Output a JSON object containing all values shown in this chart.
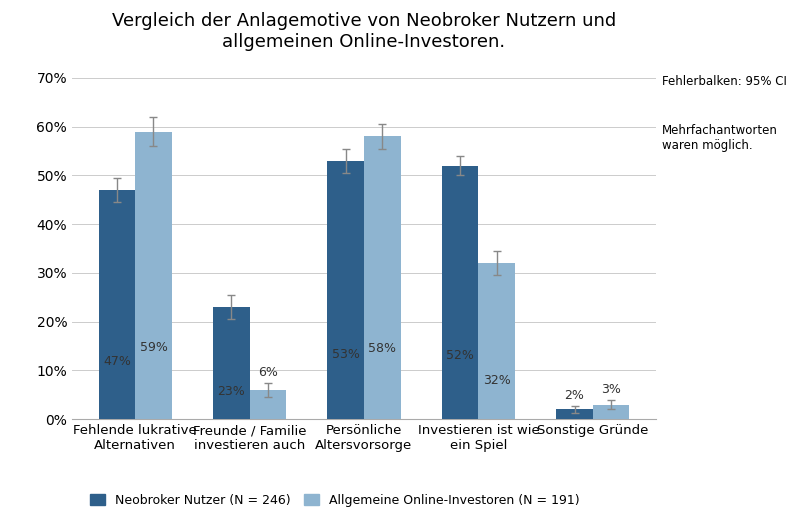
{
  "title": "Vergleich der Anlagemotive von Neobroker Nutzern und\nallgemeinen Online-Investoren.",
  "categories": [
    "Fehlende lukrative\nAlternativen",
    "Freunde / Familie\ninvestieren auch",
    "Persönliche\nAltersvorsorge",
    "Investieren ist wie\nein Spiel",
    "Sonstige Gründe"
  ],
  "neobroker_values": [
    0.47,
    0.23,
    0.53,
    0.52,
    0.02
  ],
  "online_values": [
    0.59,
    0.06,
    0.58,
    0.32,
    0.03
  ],
  "neobroker_errors": [
    0.025,
    0.025,
    0.025,
    0.02,
    0.008
  ],
  "online_errors": [
    0.03,
    0.015,
    0.025,
    0.025,
    0.01
  ],
  "neobroker_color": "#2E5F8A",
  "online_color": "#8EB4D0",
  "neobroker_label": "Neobroker Nutzer (N = 246)",
  "online_label": "Allgemeine Online-Investoren (N = 191)",
  "ylim": [
    0,
    0.72
  ],
  "yticks": [
    0.0,
    0.1,
    0.2,
    0.3,
    0.4,
    0.5,
    0.6,
    0.7
  ],
  "ytick_labels": [
    "0%",
    "10%",
    "20%",
    "30%",
    "40%",
    "50%",
    "60%",
    "70%"
  ],
  "note1": "Fehlerbalken: 95% CI",
  "note2": "Mehrfachantworten\nwaren möglich.",
  "neobroker_pct_labels": [
    "47%",
    "23%",
    "53%",
    "52%",
    "2%"
  ],
  "online_pct_labels": [
    "59%",
    "6%",
    "58%",
    "32%",
    "3%"
  ],
  "bar_width": 0.32,
  "background_color": "#FFFFFF"
}
